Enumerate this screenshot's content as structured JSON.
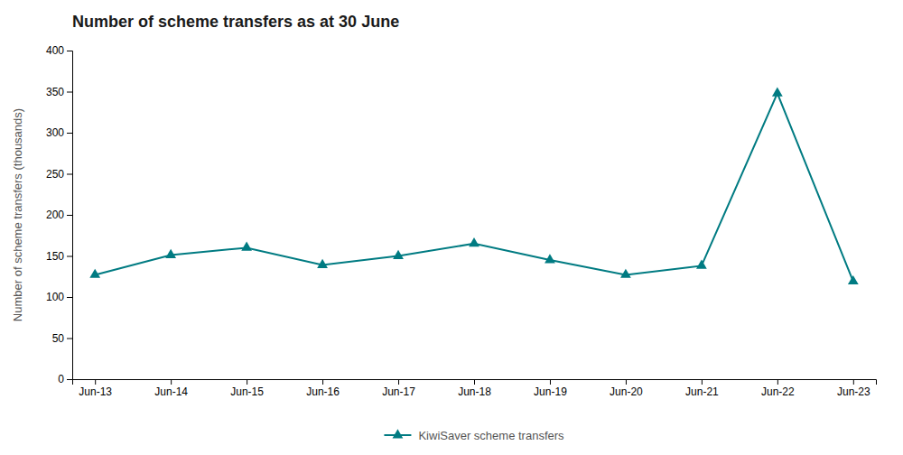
{
  "chart_data": {
    "type": "line",
    "title": "Number of scheme transfers as at 30 June",
    "ylabel": "Number of scheme transfers (thousands)",
    "categories": [
      "Jun-13",
      "Jun-14",
      "Jun-15",
      "Jun-16",
      "Jun-17",
      "Jun-18",
      "Jun-19",
      "Jun-20",
      "Jun-21",
      "Jun-22",
      "Jun-23"
    ],
    "series": [
      {
        "name": "KiwiSaver scheme transfers",
        "color": "#007b82",
        "marker": "triangle",
        "values": [
          127,
          151,
          160,
          139,
          150,
          165,
          145,
          127,
          138,
          348,
          119
        ]
      }
    ],
    "ylim": [
      0,
      400
    ],
    "yticks": [
      0,
      50,
      100,
      150,
      200,
      250,
      300,
      350,
      400
    ],
    "grid": false,
    "legend": "bottom"
  }
}
